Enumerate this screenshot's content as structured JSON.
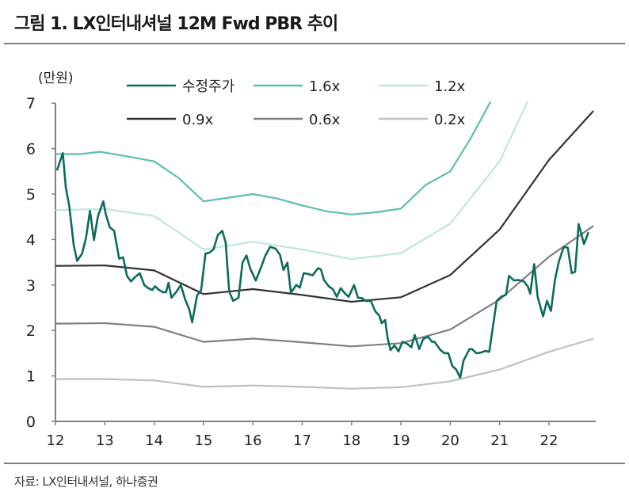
{
  "chart_data": {
    "type": "line",
    "title": "그림 1. LX인터내셔널 12M Fwd PBR 추이",
    "source": "자료: LX인터내셔널, 하나증권",
    "ylabel": "(만원)",
    "xlabel": "",
    "ylim": [
      0,
      7
    ],
    "xlim": [
      12,
      23
    ],
    "yticks": [
      "0",
      "1",
      "2",
      "3",
      "4",
      "5",
      "6",
      "7"
    ],
    "xticks": [
      "12",
      "13",
      "14",
      "15",
      "16",
      "17",
      "18",
      "19",
      "20",
      "21",
      "22"
    ],
    "grid": false,
    "legend_position": "top",
    "series": [
      {
        "name": "수정주가",
        "color": "#0d6b5e",
        "points": [
          [
            12.03,
            5.52
          ],
          [
            12.15,
            5.9
          ],
          [
            12.21,
            5.14
          ],
          [
            12.28,
            4.74
          ],
          [
            12.37,
            3.87
          ],
          [
            12.44,
            3.53
          ],
          [
            12.54,
            3.69
          ],
          [
            12.62,
            4.04
          ],
          [
            12.7,
            4.63
          ],
          [
            12.78,
            3.99
          ],
          [
            12.86,
            4.51
          ],
          [
            12.97,
            4.84
          ],
          [
            13.02,
            4.56
          ],
          [
            13.1,
            4.27
          ],
          [
            13.19,
            4.19
          ],
          [
            13.29,
            3.58
          ],
          [
            13.37,
            3.61
          ],
          [
            13.45,
            3.2
          ],
          [
            13.53,
            3.08
          ],
          [
            13.61,
            3.17
          ],
          [
            13.71,
            3.26
          ],
          [
            13.8,
            3.0
          ],
          [
            13.88,
            2.93
          ],
          [
            13.96,
            2.89
          ],
          [
            14.02,
            2.97
          ],
          [
            14.1,
            2.89
          ],
          [
            14.18,
            2.84
          ],
          [
            14.24,
            2.84
          ],
          [
            14.29,
            3.05
          ],
          [
            14.35,
            2.72
          ],
          [
            14.45,
            2.85
          ],
          [
            14.54,
            3.0
          ],
          [
            14.63,
            2.68
          ],
          [
            14.71,
            2.47
          ],
          [
            14.77,
            2.18
          ],
          [
            14.87,
            2.77
          ],
          [
            14.95,
            2.88
          ],
          [
            15.04,
            3.69
          ],
          [
            15.12,
            3.71
          ],
          [
            15.2,
            3.78
          ],
          [
            15.29,
            4.1
          ],
          [
            15.38,
            4.19
          ],
          [
            15.45,
            3.93
          ],
          [
            15.52,
            2.86
          ],
          [
            15.6,
            2.65
          ],
          [
            15.71,
            2.72
          ],
          [
            15.79,
            3.49
          ],
          [
            15.87,
            3.65
          ],
          [
            15.95,
            3.35
          ],
          [
            16.06,
            3.1
          ],
          [
            16.17,
            3.4
          ],
          [
            16.25,
            3.64
          ],
          [
            16.35,
            3.84
          ],
          [
            16.46,
            3.8
          ],
          [
            16.55,
            3.66
          ],
          [
            16.62,
            3.33
          ],
          [
            16.7,
            3.49
          ],
          [
            16.77,
            2.83
          ],
          [
            16.88,
            3.0
          ],
          [
            16.95,
            2.94
          ],
          [
            17.03,
            3.26
          ],
          [
            17.13,
            3.24
          ],
          [
            17.21,
            3.21
          ],
          [
            17.32,
            3.37
          ],
          [
            17.38,
            3.34
          ],
          [
            17.44,
            3.11
          ],
          [
            17.54,
            2.97
          ],
          [
            17.62,
            2.91
          ],
          [
            17.7,
            2.74
          ],
          [
            17.78,
            2.93
          ],
          [
            17.86,
            2.82
          ],
          [
            17.94,
            2.74
          ],
          [
            18.05,
            3.0
          ],
          [
            18.13,
            2.72
          ],
          [
            18.21,
            2.71
          ],
          [
            18.29,
            2.65
          ],
          [
            18.39,
            2.65
          ],
          [
            18.48,
            2.42
          ],
          [
            18.56,
            2.33
          ],
          [
            18.61,
            2.16
          ],
          [
            18.68,
            2.23
          ],
          [
            18.73,
            1.83
          ],
          [
            18.79,
            1.57
          ],
          [
            18.87,
            1.67
          ],
          [
            18.95,
            1.54
          ],
          [
            19.03,
            1.75
          ],
          [
            19.12,
            1.71
          ],
          [
            19.21,
            1.63
          ],
          [
            19.28,
            1.9
          ],
          [
            19.37,
            1.59
          ],
          [
            19.45,
            1.81
          ],
          [
            19.55,
            1.86
          ],
          [
            19.63,
            1.75
          ],
          [
            19.68,
            1.75
          ],
          [
            19.8,
            1.57
          ],
          [
            19.88,
            1.5
          ],
          [
            19.96,
            1.5
          ],
          [
            20.04,
            1.22
          ],
          [
            20.12,
            1.14
          ],
          [
            20.2,
            0.96
          ],
          [
            20.27,
            1.34
          ],
          [
            20.39,
            1.59
          ],
          [
            20.44,
            1.59
          ],
          [
            20.53,
            1.5
          ],
          [
            20.61,
            1.51
          ],
          [
            20.71,
            1.55
          ],
          [
            20.79,
            1.53
          ],
          [
            20.87,
            2.13
          ],
          [
            20.94,
            2.65
          ],
          [
            21.03,
            2.74
          ],
          [
            21.13,
            2.79
          ],
          [
            21.19,
            3.2
          ],
          [
            21.29,
            3.1
          ],
          [
            21.38,
            3.11
          ],
          [
            21.49,
            3.08
          ],
          [
            21.57,
            2.97
          ],
          [
            21.62,
            2.81
          ],
          [
            21.7,
            3.46
          ],
          [
            21.77,
            2.74
          ],
          [
            21.88,
            2.31
          ],
          [
            21.96,
            2.65
          ],
          [
            22.04,
            2.43
          ],
          [
            22.12,
            3.11
          ],
          [
            22.2,
            3.52
          ],
          [
            22.3,
            3.84
          ],
          [
            22.38,
            3.82
          ],
          [
            22.46,
            3.26
          ],
          [
            22.53,
            3.29
          ],
          [
            22.6,
            4.34
          ],
          [
            22.71,
            3.9
          ],
          [
            22.8,
            4.16
          ]
        ]
      },
      {
        "name": "1.6x",
        "color": "#5cbfae",
        "points": [
          [
            12,
            5.88
          ],
          [
            12.5,
            5.88
          ],
          [
            12.9,
            5.93
          ],
          [
            13.5,
            5.82
          ],
          [
            14,
            5.72
          ],
          [
            14.5,
            5.35
          ],
          [
            15,
            4.84
          ],
          [
            15.5,
            4.92
          ],
          [
            16,
            5.0
          ],
          [
            16.5,
            4.9
          ],
          [
            17,
            4.75
          ],
          [
            17.5,
            4.62
          ],
          [
            18,
            4.55
          ],
          [
            18.5,
            4.6
          ],
          [
            19,
            4.68
          ],
          [
            19.5,
            5.2
          ],
          [
            20,
            5.5
          ],
          [
            20.4,
            6.2
          ],
          [
            20.8,
            7.0
          ],
          [
            21,
            7.5
          ]
        ]
      },
      {
        "name": "1.2x",
        "color": "#bfe6df",
        "points": [
          [
            12,
            4.65
          ],
          [
            13,
            4.67
          ],
          [
            14,
            4.52
          ],
          [
            15,
            3.78
          ],
          [
            16,
            3.95
          ],
          [
            17,
            3.78
          ],
          [
            18,
            3.57
          ],
          [
            19,
            3.7
          ],
          [
            20,
            4.35
          ],
          [
            21,
            5.72
          ],
          [
            21.55,
            7.0
          ],
          [
            22,
            8.0
          ]
        ]
      },
      {
        "name": "0.9x",
        "color": "#333333",
        "points": [
          [
            12,
            3.42
          ],
          [
            13,
            3.43
          ],
          [
            14,
            3.32
          ],
          [
            15,
            2.8
          ],
          [
            16,
            2.91
          ],
          [
            17,
            2.78
          ],
          [
            18,
            2.63
          ],
          [
            19,
            2.73
          ],
          [
            20,
            3.22
          ],
          [
            21,
            4.22
          ],
          [
            22,
            5.75
          ],
          [
            22.9,
            6.83
          ]
        ]
      },
      {
        "name": "0.6x",
        "color": "#808080",
        "points": [
          [
            12,
            2.15
          ],
          [
            13,
            2.16
          ],
          [
            14,
            2.08
          ],
          [
            15,
            1.75
          ],
          [
            16,
            1.82
          ],
          [
            17,
            1.74
          ],
          [
            18,
            1.65
          ],
          [
            19,
            1.72
          ],
          [
            20,
            2.02
          ],
          [
            21,
            2.68
          ],
          [
            22,
            3.62
          ],
          [
            22.9,
            4.3
          ]
        ]
      },
      {
        "name": "0.2x",
        "color": "#c0c0c0",
        "points": [
          [
            12,
            0.93
          ],
          [
            13,
            0.93
          ],
          [
            14,
            0.9
          ],
          [
            15,
            0.76
          ],
          [
            16,
            0.79
          ],
          [
            17,
            0.76
          ],
          [
            18,
            0.72
          ],
          [
            19,
            0.75
          ],
          [
            20,
            0.88
          ],
          [
            21,
            1.14
          ],
          [
            22,
            1.53
          ],
          [
            22.9,
            1.82
          ]
        ]
      }
    ]
  }
}
